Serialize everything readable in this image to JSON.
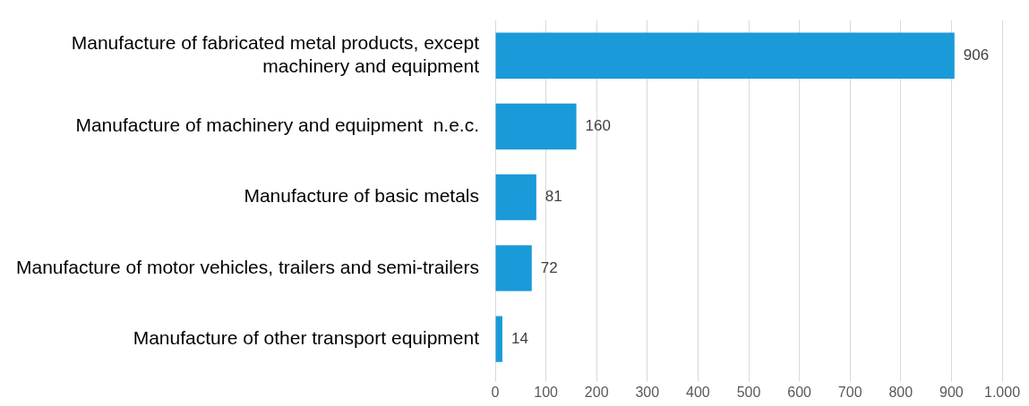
{
  "chart_data": {
    "type": "bar",
    "orientation": "horizontal",
    "categories": [
      "Manufacture of fabricated metal products, except machinery and equipment",
      "Manufacture of machinery and equipment  n.e.c.",
      "Manufacture of basic metals",
      "Manufacture of motor vehicles, trailers and semi-trailers",
      "Manufacture of other transport equipment"
    ],
    "values": [
      906,
      160,
      81,
      72,
      14
    ],
    "color": "#1a9ad9",
    "xlim": [
      0,
      1000
    ],
    "xticks": [
      0,
      100,
      200,
      300,
      400,
      500,
      600,
      700,
      800,
      900,
      {
        "value": 1000,
        "label": "1.000"
      }
    ],
    "grid": "x",
    "data_labels": true,
    "legend": false
  }
}
